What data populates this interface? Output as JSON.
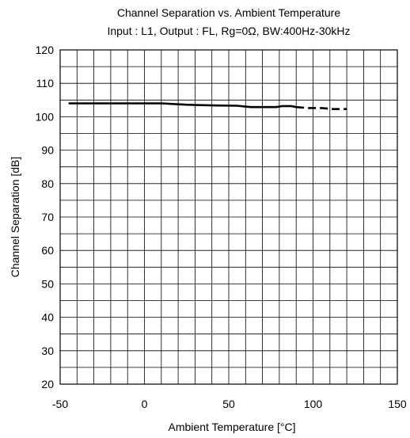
{
  "chart_data": {
    "type": "line",
    "title": "Channel Separation vs. Ambient Temperature",
    "subtitle": "Input : L1, Output : FL, Rg=0Ω, BW:400Hz-30kHz",
    "xlabel": "Ambient Temperature [°C]",
    "ylabel": "Channel Separation [dB]",
    "xlim": [
      -50,
      150
    ],
    "ylim": [
      20,
      120
    ],
    "x_ticks": [
      -50,
      0,
      50,
      100,
      150
    ],
    "y_ticks": [
      20,
      30,
      40,
      50,
      60,
      70,
      80,
      90,
      100,
      110,
      120
    ],
    "x_ticks_labels": [
      "-50",
      "0",
      "50",
      "100",
      "150"
    ],
    "y_ticks_labels": [
      "20",
      "30",
      "40",
      "50",
      "60",
      "70",
      "80",
      "90",
      "100",
      "110",
      "120"
    ],
    "grid": true,
    "series": [
      {
        "style": "solid",
        "color": "#000000",
        "x": [
          -45,
          -30,
          -10,
          0,
          10,
          25,
          40,
          55,
          63,
          72,
          78,
          82,
          87,
          90
        ],
        "y": [
          104,
          104,
          104,
          104,
          104,
          103.6,
          103.4,
          103.3,
          102.9,
          102.9,
          102.9,
          103.2,
          103.2,
          102.9
        ]
      },
      {
        "style": "dashed",
        "color": "#000000",
        "x": [
          90,
          97,
          105,
          112,
          120
        ],
        "y": [
          102.9,
          102.6,
          102.6,
          102.3,
          102.3
        ]
      }
    ]
  }
}
